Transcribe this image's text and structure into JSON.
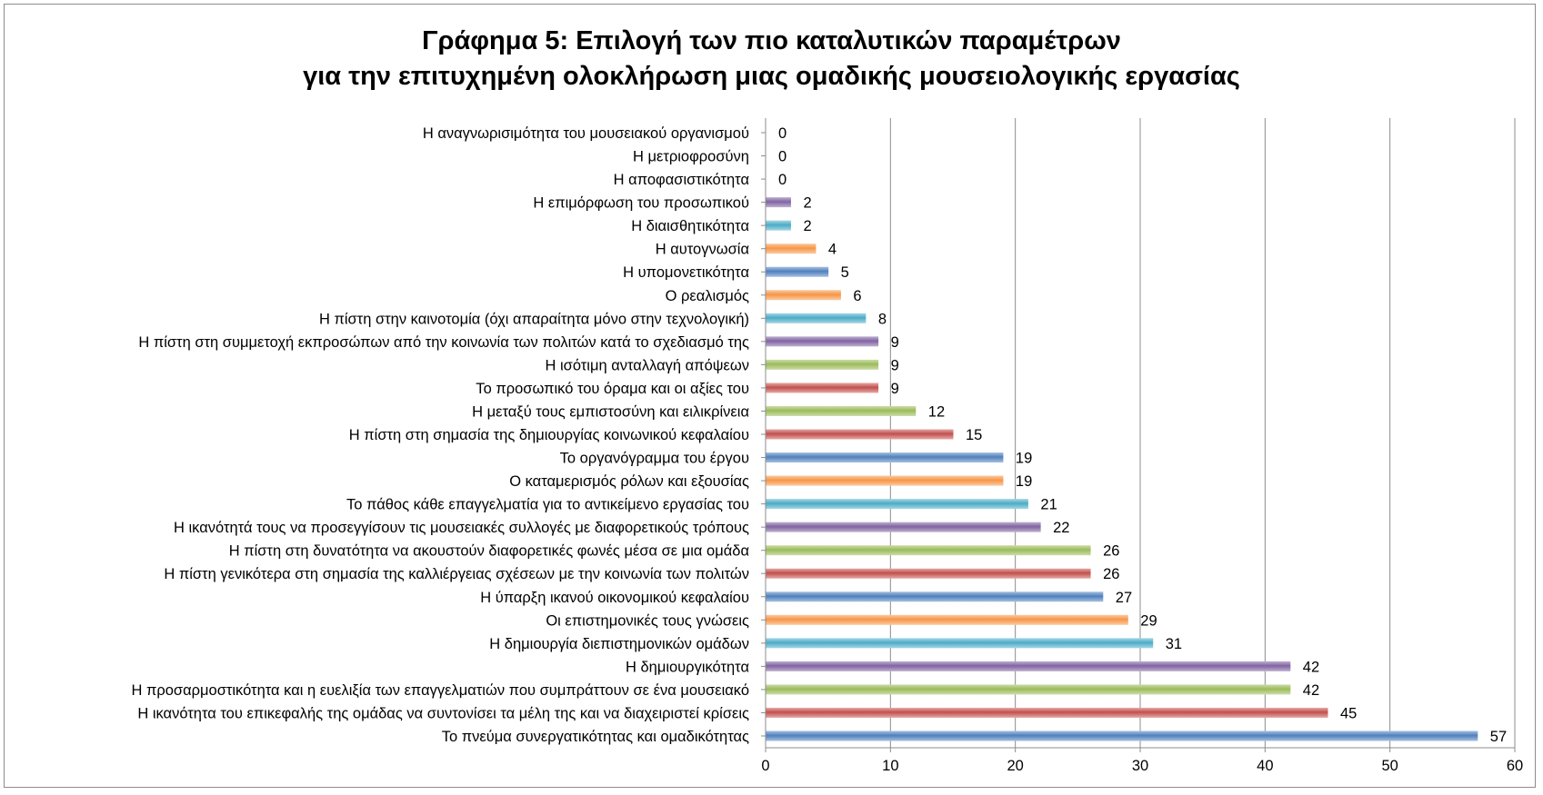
{
  "chart_data": {
    "type": "bar",
    "orientation": "horizontal",
    "title_lines": [
      "Γράφημα 5: Επιλογή των πιο καταλυτικών παραμέτρων",
      "για την επιτυχημένη ολοκλήρωση μιας ομαδικής μουσειολογικής εργασίας"
    ],
    "xlabel": "",
    "ylabel": "",
    "xlim": [
      0,
      60
    ],
    "x_ticks": [
      "0",
      "10",
      "20",
      "30",
      "40",
      "50",
      "60"
    ],
    "grid": "vertical",
    "legend": "none",
    "categories": [
      "Η αναγνωρισιμότητα του μουσειακού οργανισμού",
      "Η μετριοφροσύνη",
      "Η αποφασιστικότητα",
      "Η επιμόρφωση του προσωπικού",
      "Η διαισθητικότητα",
      "Η αυτογνωσία",
      "Η υπομονετικότητα",
      "Ο ρεαλισμός",
      "Η πίστη στην καινοτομία (όχι απαραίτητα μόνο στην τεχνολογική)",
      "Η πίστη στη συμμετοχή εκπροσώπων από την κοινωνία των πολιτών κατά το σχεδιασμό της",
      "Η ισότιμη ανταλλαγή απόψεων",
      "Το προσωπικό του όραμα και οι αξίες του",
      "Η μεταξύ τους εμπιστοσύνη και ειλικρίνεια",
      "Η πίστη στη σημασία της δημιουργίας κοινωνικού κεφαλαίου",
      "Το οργανόγραμμα του έργου",
      "Ο καταμερισμός ρόλων και εξουσίας",
      "Το πάθος κάθε επαγγελματία για το αντικείμενο εργασίας του",
      "Η ικανότητά τους να προσεγγίσουν τις μουσειακές συλλογές με διαφορετικούς τρόπους",
      "Η πίστη στη δυνατότητα να ακουστούν διαφορετικές φωνές μέσα σε μια ομάδα",
      "Η πίστη γενικότερα στη σημασία της καλλιέργειας σχέσεων με την κοινωνία των πολιτών",
      "Η ύπαρξη ικανού οικονομικού κεφαλαίου",
      "Οι επιστημονικές τους γνώσεις",
      "Η δημιουργία διεπιστημονικών ομάδων",
      "Η δημιουργικότητα",
      "Η προσαρμοστικότητα και η ευελιξία των επαγγελματιών που συμπράττουν σε ένα μουσειακό",
      "Η ικανότητα του επικεφαλής της ομάδας να συντονίσει τα μέλη της και να διαχειριστεί κρίσεις",
      "Το πνεύμα συνεργατικότητας και ομαδικότητας"
    ],
    "values": [
      0,
      0,
      0,
      2,
      2,
      4,
      5,
      6,
      8,
      9,
      9,
      9,
      12,
      15,
      19,
      19,
      21,
      22,
      26,
      26,
      27,
      29,
      31,
      42,
      42,
      45,
      57
    ],
    "value_labels": [
      "0",
      "0",
      "0",
      "2",
      "2",
      "4",
      "5",
      "6",
      "8",
      "9",
      "9",
      "9",
      "12",
      "15",
      "19",
      "19",
      "21",
      "22",
      "26",
      "26",
      "27",
      "29",
      "31",
      "42",
      "42",
      "45",
      "57"
    ],
    "colors": [
      "#4f81bd",
      "#c0504d",
      "#9bbb59",
      "#8064a2",
      "#4bacc6",
      "#f79646",
      "#4f81bd",
      "#f79646",
      "#4bacc6",
      "#8064a2",
      "#9bbb59",
      "#c0504d",
      "#9bbb59",
      "#c0504d",
      "#4f81bd",
      "#f79646",
      "#4bacc6",
      "#8064a2",
      "#9bbb59",
      "#c0504d",
      "#4f81bd",
      "#f79646",
      "#4bacc6",
      "#8064a2",
      "#9bbb59",
      "#c0504d",
      "#4f81bd"
    ],
    "colors_light": [
      "#a7c0de",
      "#e6a9a7",
      "#cddcab",
      "#bfb0d0",
      "#a5d6e3",
      "#fbc9a2",
      "#a7c0de",
      "#fbc9a2",
      "#a5d6e3",
      "#bfb0d0",
      "#cddcab",
      "#e6a9a7",
      "#cddcab",
      "#e6a9a7",
      "#a7c0de",
      "#fbc9a2",
      "#a5d6e3",
      "#bfb0d0",
      "#cddcab",
      "#e6a9a7",
      "#a7c0de",
      "#fbc9a2",
      "#a5d6e3",
      "#bfb0d0",
      "#cddcab",
      "#e6a9a7",
      "#a7c0de"
    ],
    "gridline_color": "#8c8c8c",
    "axis_color": "#8c8c8c"
  }
}
